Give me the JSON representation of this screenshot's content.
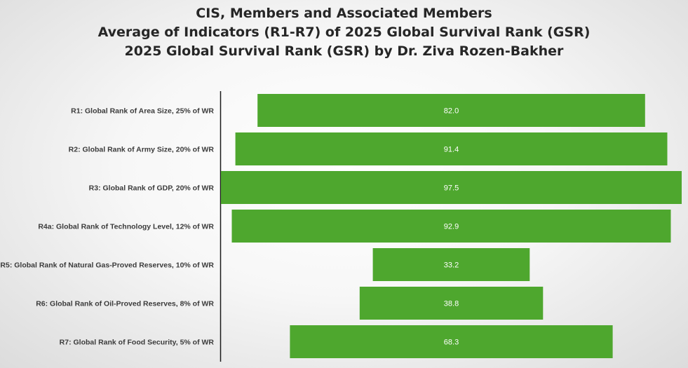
{
  "title_lines": [
    "CIS, Members and Associated Members",
    "Average of Indicators (R1-R7) of 2025 Global Survival Rank (GSR)",
    "2025 Global Survival Rank (GSR) by Dr. Ziva Rozen-Bakher"
  ],
  "chart_data": {
    "type": "bar",
    "orientation": "horizontal",
    "style": "funnel-centered",
    "categories": [
      "R1: Global Rank of Area Size, 25% of WR",
      "R2: Global Rank of Army Size, 20% of WR",
      "R3: Global Rank of GDP, 20% of WR",
      "R4a: Global Rank of Technology Level, 12% of WR",
      "R5: Global Rank of Natural Gas-Proved Reserves, 10% of WR",
      "R6: Global Rank of Oil-Proved Reserves, 8% of WR",
      "R7: Global Rank of Food Security, 5% of WR"
    ],
    "values": [
      82.0,
      91.4,
      97.5,
      92.9,
      33.2,
      38.8,
      68.3
    ],
    "value_labels": [
      "82.0",
      "91.4",
      "97.5",
      "92.9",
      "33.2",
      "38.8",
      "68.3"
    ],
    "xlim": [
      0,
      97.5
    ],
    "bar_color": "#4ea72e",
    "grid": false,
    "legend": "none"
  }
}
